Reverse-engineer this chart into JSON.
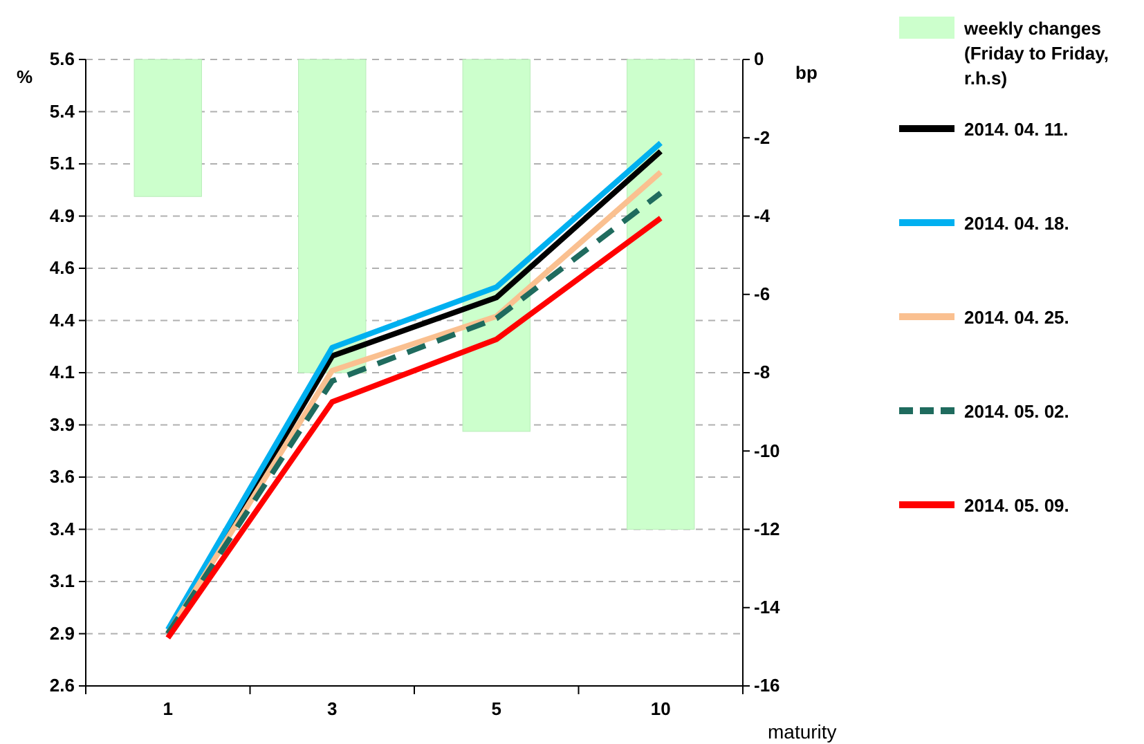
{
  "chart_data": {
    "type": "line",
    "categories": [
      "1",
      "3",
      "5",
      "10"
    ],
    "xlabel": "maturity",
    "ylabel": "%",
    "y2label": "bp",
    "ylim": [
      2.6,
      5.6
    ],
    "yticks": [
      2.6,
      {
        "value": 2.85,
        "label": "2.9"
      },
      3.1,
      {
        "value": 3.35,
        "label": "3.4"
      },
      3.6,
      {
        "value": 3.85,
        "label": "3.9"
      },
      4.1,
      {
        "value": 4.35,
        "label": "4.4"
      },
      4.6,
      {
        "value": 4.85,
        "label": "4.9"
      },
      5.1,
      {
        "value": 5.35,
        "label": "5.4"
      },
      5.6
    ],
    "y2lim": [
      -16,
      0
    ],
    "y2ticks": [
      -16,
      -14,
      -12,
      -10,
      -8,
      -6,
      -4,
      -2,
      0
    ],
    "grid": "y",
    "legend": "right",
    "marker": "none",
    "series": [
      {
        "name": "weekly changes (Friday to Friday, r.h.s)",
        "type": "bar",
        "axis": "y2",
        "color": "#ccffcc",
        "values": [
          -3.5,
          -8,
          -9.5,
          -12
        ]
      },
      {
        "name": "2014. 04. 11.",
        "color": "#000000",
        "line_style": "solid",
        "values": [
          2.85,
          4.18,
          4.46,
          5.16
        ]
      },
      {
        "name": "2014. 04. 18.",
        "color": "#00b0f0",
        "line_style": "solid",
        "values": [
          2.87,
          4.22,
          4.51,
          5.2
        ]
      },
      {
        "name": "2014. 04. 25.",
        "color": "#fac090",
        "line_style": "solid",
        "values": [
          2.85,
          4.11,
          4.37,
          5.06
        ]
      },
      {
        "name": "2014. 05. 02.",
        "color": "#1f6b5e",
        "line_style": "dashed",
        "values": [
          2.85,
          4.06,
          4.36,
          4.96
        ]
      },
      {
        "name": "2014. 05. 09.",
        "color": "#ff0000",
        "line_style": "solid",
        "values": [
          2.83,
          3.96,
          4.26,
          4.84
        ]
      }
    ]
  }
}
